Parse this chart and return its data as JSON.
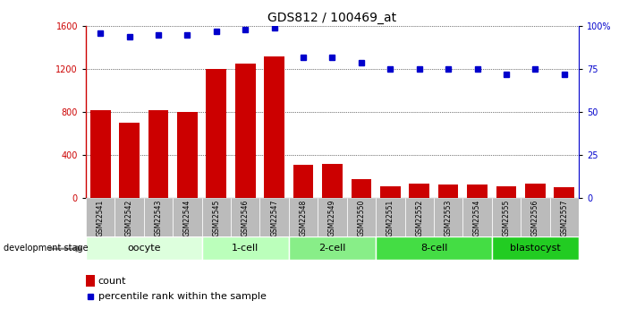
{
  "title": "GDS812 / 100469_at",
  "categories": [
    "GSM22541",
    "GSM22542",
    "GSM22543",
    "GSM22544",
    "GSM22545",
    "GSM22546",
    "GSM22547",
    "GSM22548",
    "GSM22549",
    "GSM22550",
    "GSM22551",
    "GSM22552",
    "GSM22553",
    "GSM22554",
    "GSM22555",
    "GSM22556",
    "GSM22557"
  ],
  "counts": [
    820,
    700,
    820,
    800,
    1200,
    1250,
    1320,
    310,
    320,
    170,
    110,
    130,
    120,
    120,
    110,
    130,
    100
  ],
  "percentile": [
    96,
    94,
    95,
    95,
    97,
    98,
    99,
    82,
    82,
    79,
    75,
    75,
    75,
    75,
    72,
    75,
    72
  ],
  "bar_color": "#cc0000",
  "dot_color": "#0000cc",
  "ylim_left": [
    0,
    1600
  ],
  "ylim_right": [
    0,
    100
  ],
  "yticks_left": [
    0,
    400,
    800,
    1200,
    1600
  ],
  "yticks_right": [
    0,
    25,
    50,
    75,
    100
  ],
  "ytick_labels_right": [
    "0",
    "25",
    "50",
    "75",
    "100%"
  ],
  "groups": [
    {
      "label": "oocyte",
      "start": 0,
      "end": 3,
      "color": "#ddffdd"
    },
    {
      "label": "1-cell",
      "start": 4,
      "end": 6,
      "color": "#bbffbb"
    },
    {
      "label": "2-cell",
      "start": 7,
      "end": 9,
      "color": "#88ee88"
    },
    {
      "label": "8-cell",
      "start": 10,
      "end": 13,
      "color": "#44dd44"
    },
    {
      "label": "blastocyst",
      "start": 14,
      "end": 16,
      "color": "#22cc22"
    }
  ],
  "legend_count_label": "count",
  "legend_pct_label": "percentile rank within the sample",
  "dev_stage_label": "development stage",
  "background_color": "#ffffff",
  "tick_label_bg": "#bbbbbb",
  "grid_color": "#000000",
  "title_fontsize": 10,
  "axis_fontsize": 7,
  "group_label_fontsize": 8
}
